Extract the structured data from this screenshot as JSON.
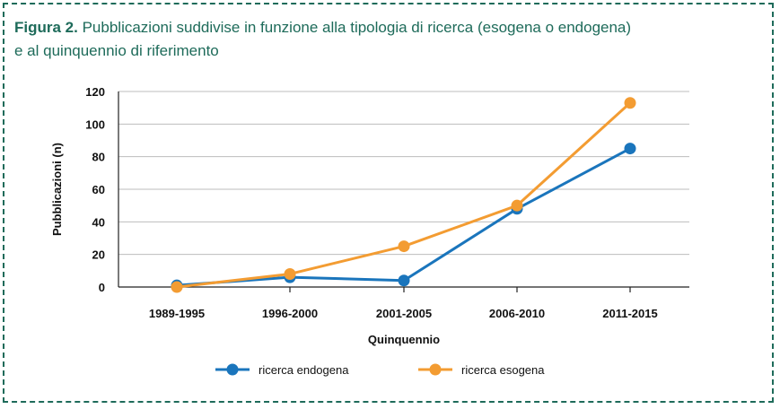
{
  "figure": {
    "label": "Figura 2.",
    "caption_line1": "Pubblicazioni suddivise in funzione alla tipologia di ricerca (esogena o endogena)",
    "caption_line2": "e al quinquennio di riferimento"
  },
  "colors": {
    "frame": "#1e6b5a",
    "title": "#1e6b5a",
    "grid": "#bdbdbd",
    "axis": "#222222",
    "endogena": "#1a75bc",
    "esogena": "#f39c32"
  },
  "chart_data": {
    "type": "line",
    "categories": [
      "1989-1995",
      "1996-2000",
      "2001-2005",
      "2006-2010",
      "2011-2015"
    ],
    "series": [
      {
        "name": "ricerca endogena",
        "values": [
          1,
          6,
          4,
          48,
          85
        ]
      },
      {
        "name": "ricerca esogena",
        "values": [
          0,
          8,
          25,
          50,
          113
        ]
      }
    ],
    "xlabel": "Quinquennio",
    "ylabel": "Pubblicazioni (n)",
    "ylim": [
      0,
      120
    ],
    "yticks": [
      0,
      20,
      40,
      60,
      80,
      100,
      120
    ],
    "grid": "horizontal",
    "legend": "bottom"
  }
}
